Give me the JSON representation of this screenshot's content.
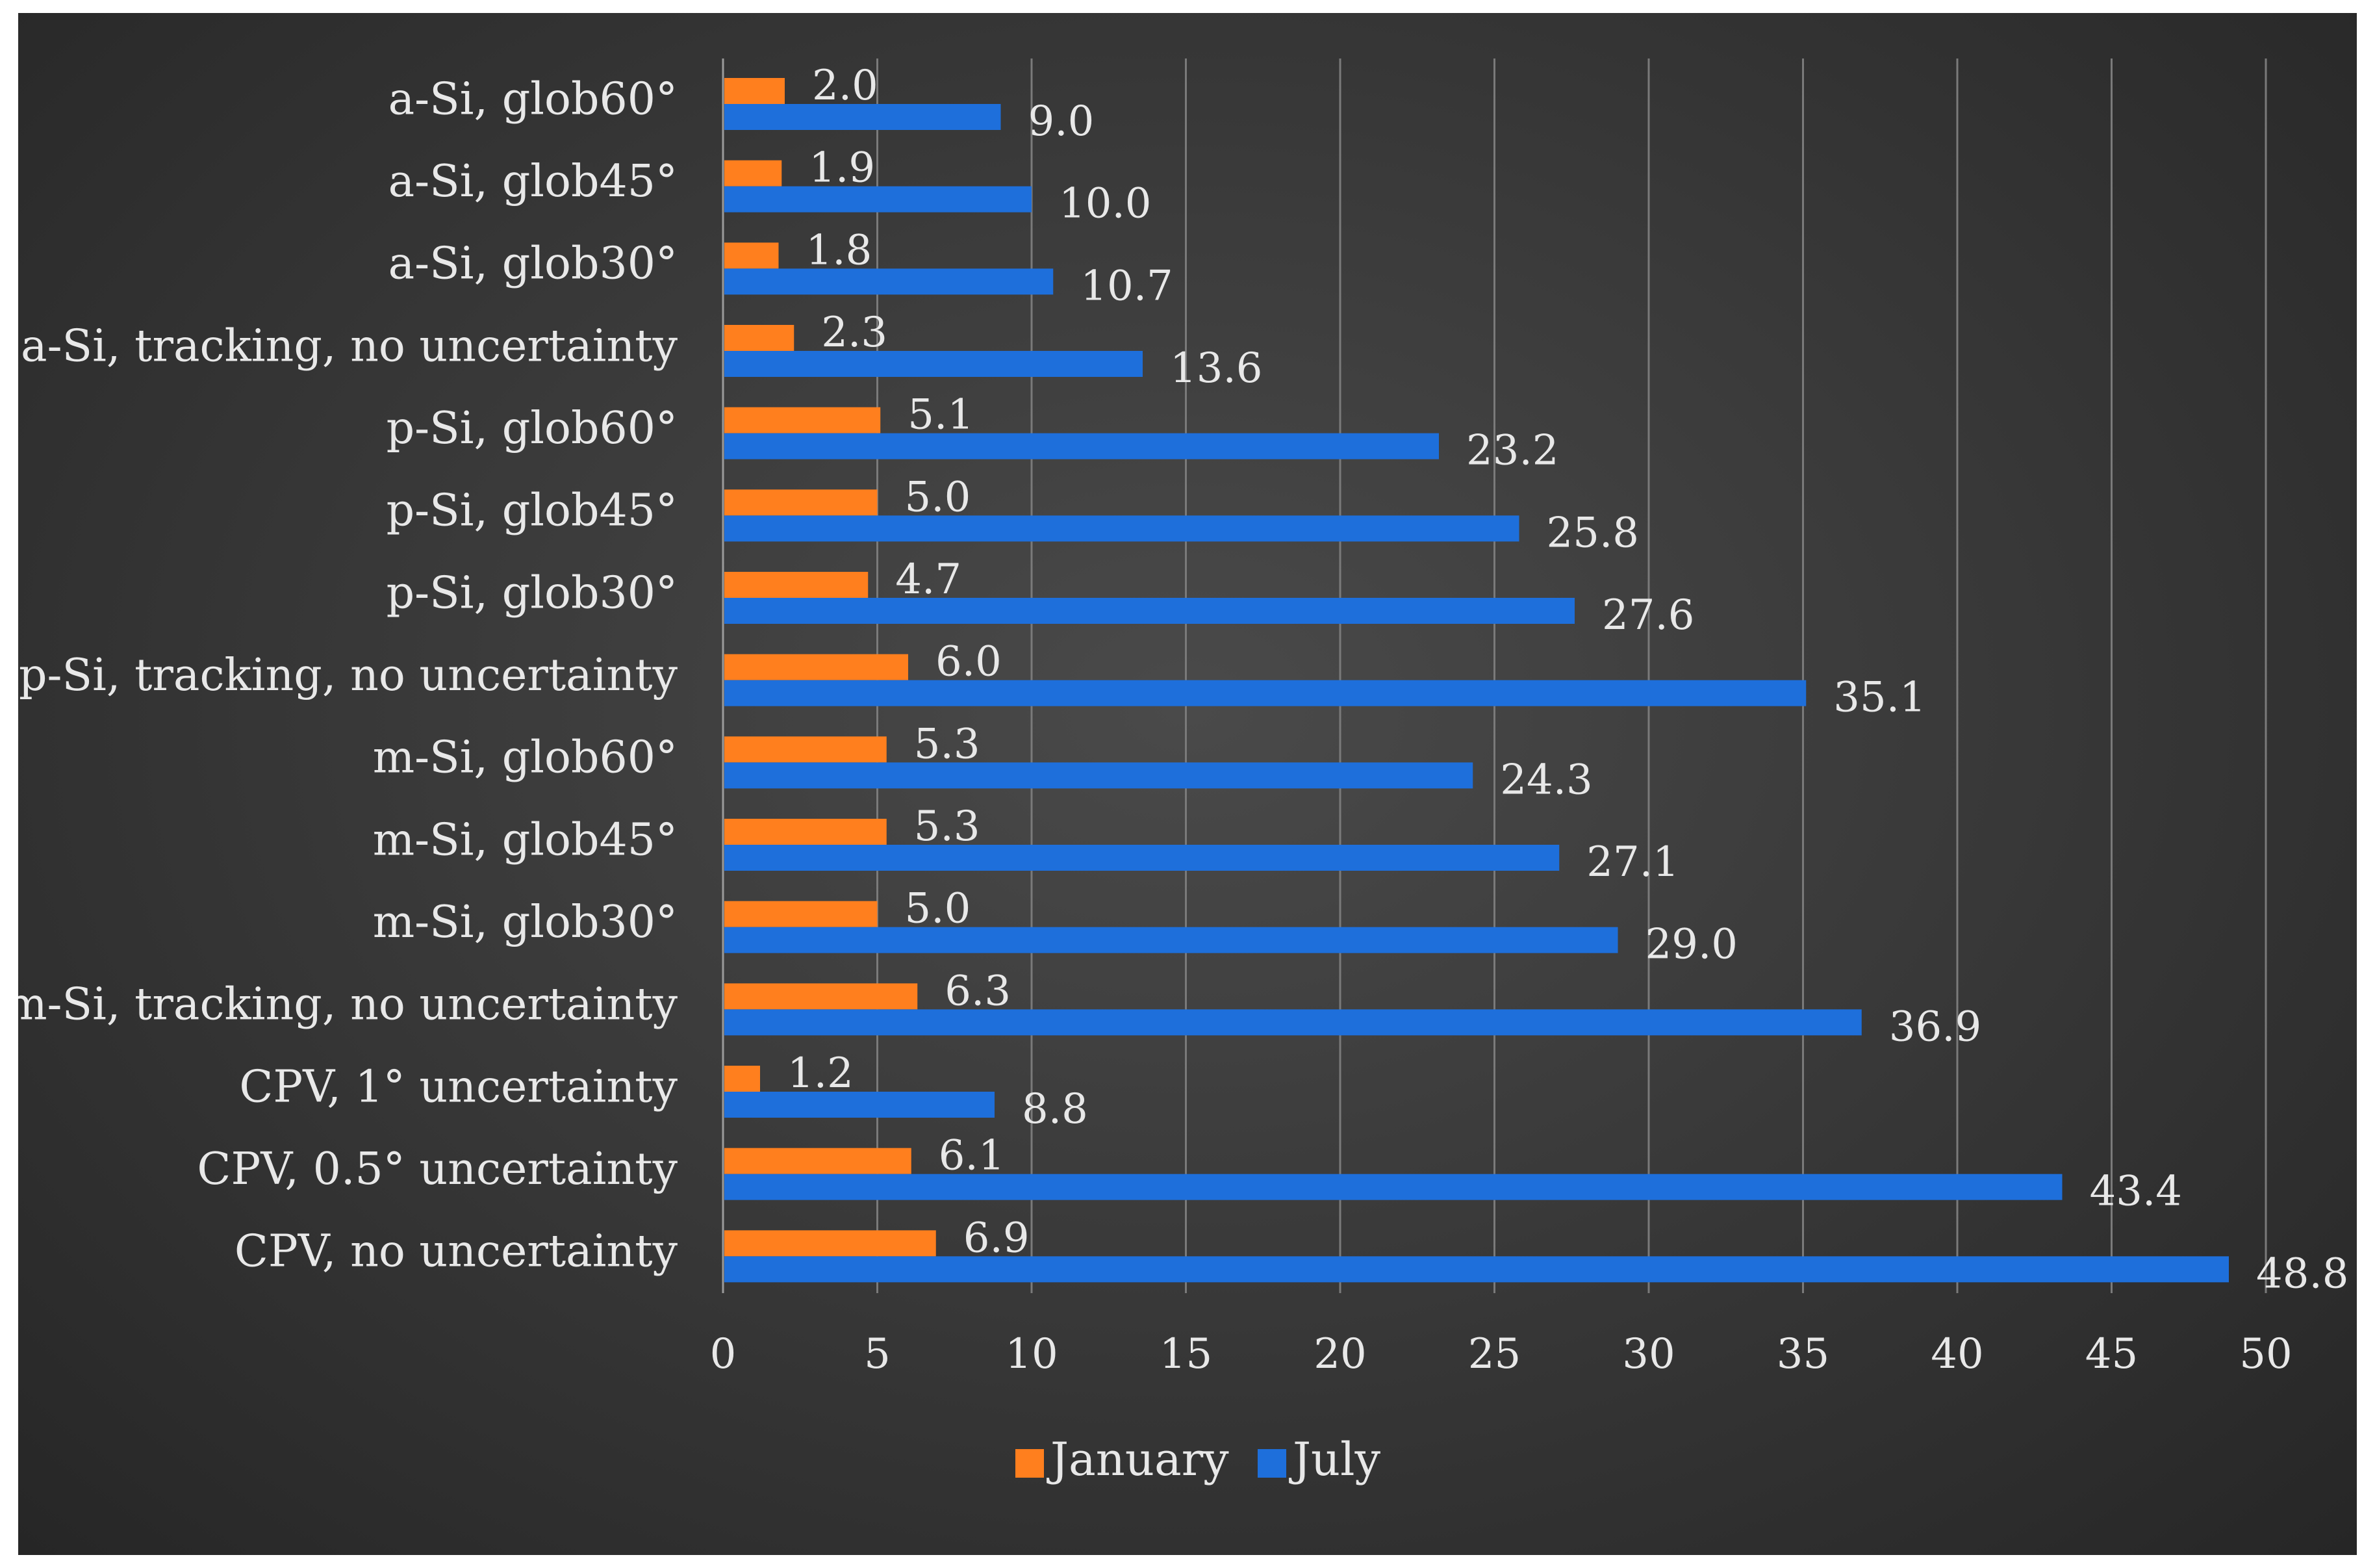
{
  "chart_data": {
    "type": "bar",
    "orientation": "horizontal",
    "title": "",
    "xlabel": "",
    "ylabel": "",
    "xlim": [
      0,
      50
    ],
    "xticks": [
      0,
      5,
      10,
      15,
      20,
      25,
      30,
      35,
      40,
      45,
      50
    ],
    "grid": true,
    "legend_position": "bottom",
    "categories": [
      "a-Si, glob60°",
      "a-Si, glob45°",
      "a-Si, glob30°",
      "a-Si, tracking, no uncertainty",
      "p-Si, glob60°",
      "p-Si, glob45°",
      "p-Si, glob30°",
      "p-Si, tracking, no uncertainty",
      "m-Si, glob60°",
      "m-Si, glob45°",
      "m-Si, glob30°",
      "m-Si, tracking, no uncertainty",
      "CPV, 1° uncertainty",
      "CPV, 0.5° uncertainty",
      "CPV, no uncertainty"
    ],
    "series": [
      {
        "name": "January",
        "color": "#FF7F1E",
        "values": [
          2.0,
          1.9,
          1.8,
          2.3,
          5.1,
          5.0,
          4.7,
          6.0,
          5.3,
          5.3,
          5.0,
          6.3,
          1.2,
          6.1,
          6.9
        ],
        "labels": [
          "2.0",
          "1.9",
          "1.8",
          "2.3",
          "5.1",
          "5.0",
          "4.7",
          "6.0",
          "5.3",
          "5.3",
          "5.0",
          "6.3",
          "1.2",
          "6.1",
          "6.9"
        ]
      },
      {
        "name": "July",
        "color": "#1E6FDB",
        "values": [
          9.0,
          10.0,
          10.7,
          13.6,
          23.2,
          25.8,
          27.6,
          35.1,
          24.3,
          27.1,
          29.0,
          36.9,
          8.8,
          43.4,
          48.8
        ],
        "labels": [
          "9.0",
          "10.0",
          "10.7",
          "13.6",
          "23.2",
          "25.8",
          "27.6",
          "35.1",
          "24.3",
          "27.1",
          "29.0",
          "36.9",
          "8.8",
          "43.4",
          "48.8"
        ]
      }
    ]
  }
}
